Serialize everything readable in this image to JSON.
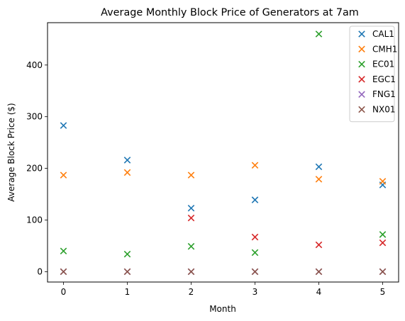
{
  "chart_data": {
    "type": "scatter",
    "title": "Average Monthly Block Price of Generators at 7am",
    "xlabel": "Month",
    "ylabel": "Average Block Price ($)",
    "xlim": [
      -0.25,
      5.25
    ],
    "ylim": [
      -20,
      482
    ],
    "xticks": [
      0,
      1,
      2,
      3,
      4,
      5
    ],
    "yticks": [
      0,
      100,
      200,
      300,
      400
    ],
    "marker": "x",
    "legend_position": "upper right",
    "grid": false,
    "series": [
      {
        "name": "CAL1",
        "color": "#1f77b4",
        "x": [
          0,
          1,
          2,
          3,
          4,
          5
        ],
        "y": [
          283,
          216,
          123,
          139,
          203,
          168
        ]
      },
      {
        "name": "CMH1",
        "color": "#ff7f0e",
        "x": [
          0,
          1,
          2,
          3,
          4,
          5
        ],
        "y": [
          187,
          192,
          187,
          206,
          179,
          175
        ]
      },
      {
        "name": "EC01",
        "color": "#2ca02c",
        "x": [
          0,
          1,
          2,
          3,
          4,
          5
        ],
        "y": [
          40,
          34,
          49,
          37,
          460,
          72
        ]
      },
      {
        "name": "EGC1",
        "color": "#d62728",
        "x": [
          2,
          3,
          4,
          5
        ],
        "y": [
          104,
          67,
          52,
          56
        ]
      },
      {
        "name": "FNG1",
        "color": "#9467bd",
        "x": [
          0,
          1,
          2,
          3,
          4,
          5
        ],
        "y": [
          0,
          0,
          0,
          0,
          0,
          0
        ]
      },
      {
        "name": "NX01",
        "color": "#8c564b",
        "x": [
          0,
          1,
          2,
          3,
          4,
          5
        ],
        "y": [
          0,
          0,
          0,
          0,
          0,
          0
        ]
      }
    ]
  }
}
